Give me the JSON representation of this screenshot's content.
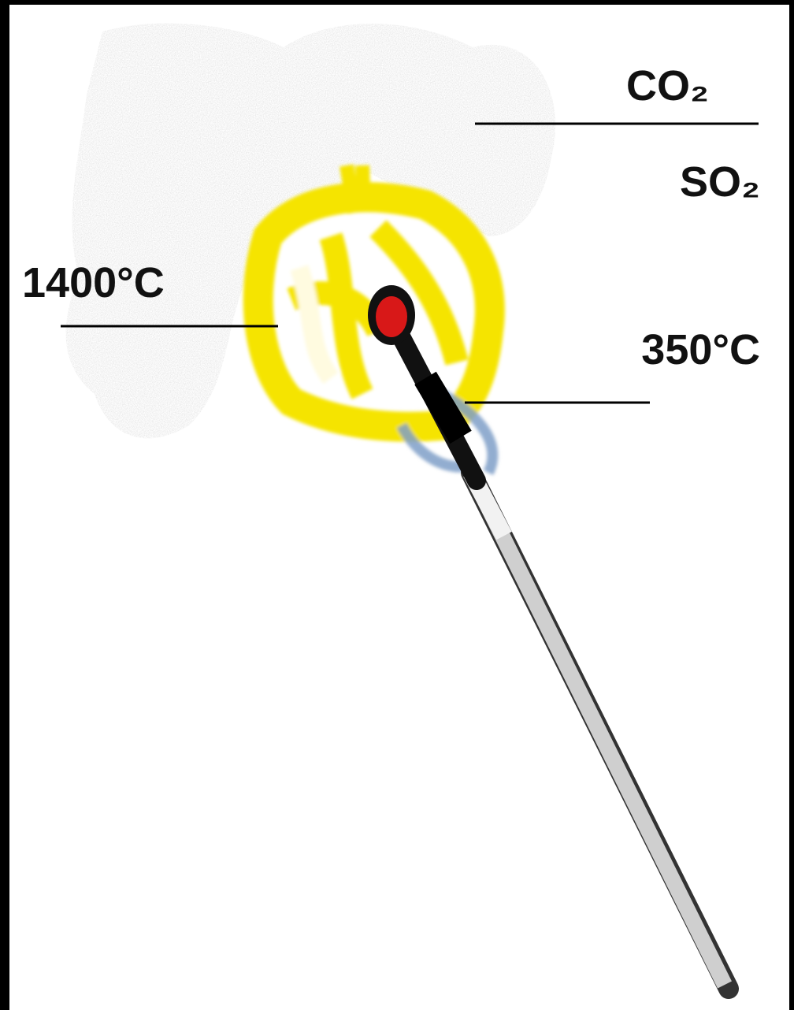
{
  "labels": [
    "CO₂",
    "SO₂",
    "1400°C",
    "350°C"
  ]
}
